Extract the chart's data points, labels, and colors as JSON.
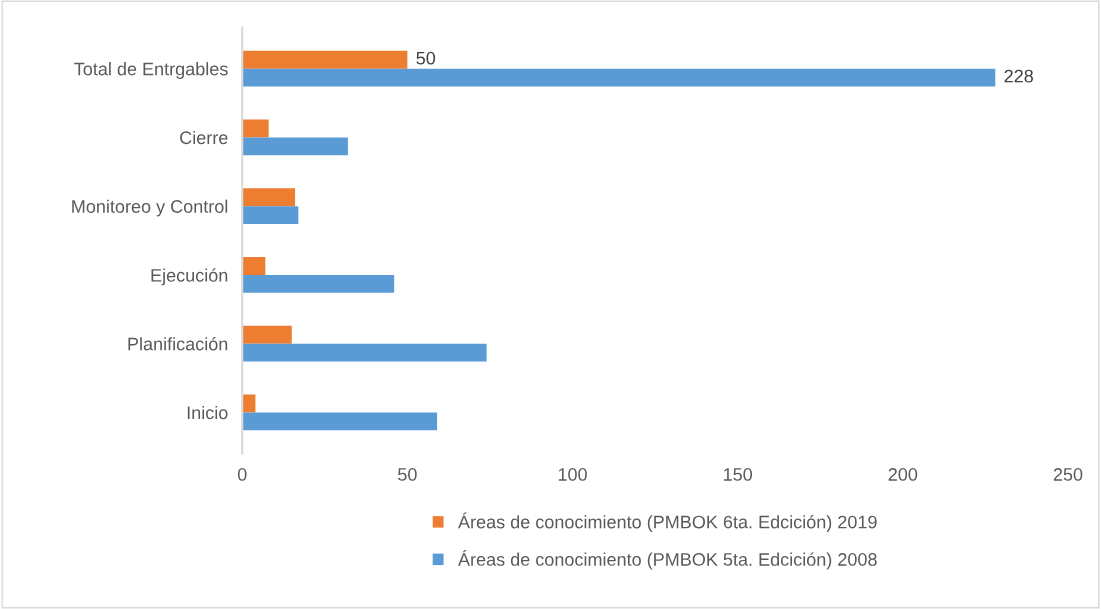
{
  "chart_data": {
    "type": "bar",
    "orientation": "horizontal",
    "categories": [
      "Total de Entrgables",
      "Cierre",
      "Monitoreo y Control",
      "Ejecución",
      "Planificación",
      "Inicio"
    ],
    "series": [
      {
        "name": "Áreas de conocimiento (PMBOK 6ta. Edcición) 2019",
        "color": "#ed7d31",
        "values": [
          50,
          8,
          16,
          7,
          15,
          4
        ],
        "value_labels": [
          "50",
          null,
          null,
          null,
          null,
          null
        ]
      },
      {
        "name": "Áreas de conocimiento (PMBOK 5ta. Edcición) 2008",
        "color": "#5b9bd5",
        "values": [
          228,
          32,
          17,
          46,
          74,
          59
        ],
        "value_labels": [
          "228",
          null,
          null,
          null,
          null,
          null
        ]
      }
    ],
    "xlim": [
      0,
      250
    ],
    "xticks": [
      0,
      50,
      100,
      150,
      200,
      250
    ],
    "grid": false,
    "legend": "bottom"
  }
}
